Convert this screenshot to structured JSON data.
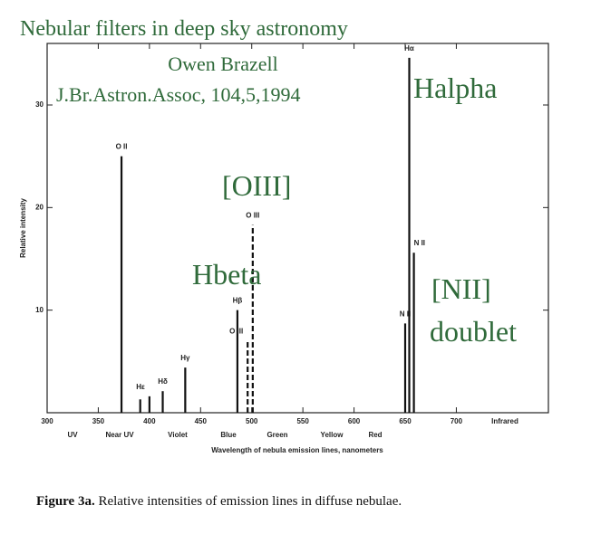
{
  "chart_data": {
    "type": "stem",
    "xlabel": "Wavelength of nebula emission lines, nanometers",
    "ylabel": "Relative intensity",
    "xlim": [
      300,
      790
    ],
    "xticks": [
      300,
      350,
      400,
      450,
      500,
      550,
      600,
      650,
      700
    ],
    "xtick_extra": "Infrared",
    "ylim": [
      0,
      36
    ],
    "yticks": [
      10,
      20,
      30
    ],
    "bands": [
      "UV",
      "Near UV",
      "Violet",
      "Blue",
      "Green",
      "Yellow",
      "Red"
    ],
    "series": [
      {
        "color": "#111111",
        "x": [
          372.7,
          391,
          400,
          413,
          435,
          486,
          496,
          501,
          650,
          654,
          658.5
        ],
        "values": [
          25,
          1.3,
          1.6,
          2.1,
          4.4,
          10,
          7,
          18.3,
          8.7,
          34.6,
          15.6
        ],
        "line_labels": [
          "O II",
          null,
          "Hε",
          "Hδ",
          "Hγ",
          "Hβ",
          "O III",
          "O III",
          "N II",
          "Hα",
          "N II"
        ],
        "line_styles": [
          "solid",
          "solid",
          "solid",
          "solid",
          "solid",
          "solid",
          "dashed",
          "dashed",
          "solid",
          "solid",
          "solid"
        ]
      }
    ],
    "annotations": [
      "Nebular filters in deep sky astronomy",
      "Owen Brazell",
      "J.Br.Astron.Assoc, 104,5,1994",
      "Halpha",
      "[OIII]",
      "Hbeta",
      "[NII]",
      "doublet"
    ]
  },
  "caption": {
    "label": "Figure 3a.",
    "text": "Relative intensities of emission lines in diffuse nebulae."
  }
}
